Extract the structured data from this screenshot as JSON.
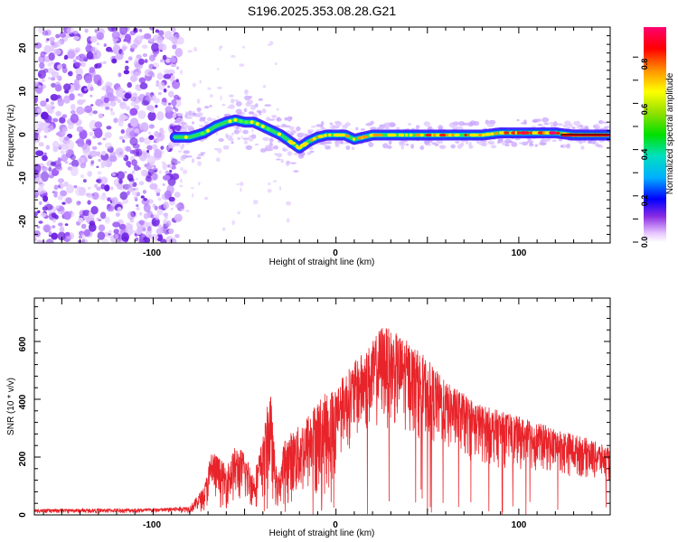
{
  "title": "S196.2025.353.08.28.G21",
  "chart_data": [
    {
      "type": "heatmap",
      "title": "S196.2025.353.08.28.G21",
      "xlabel": "Height of straight line (km)",
      "ylabel": "Frequency (Hz)",
      "xlim": [
        -165,
        150
      ],
      "ylim": [
        -25,
        25
      ],
      "xticks": [
        "-100",
        "0",
        "100"
      ],
      "yticks": [
        "-20",
        "-10",
        "0",
        "10",
        "20"
      ],
      "colorbar": {
        "label": "Normalized spectral amplitude",
        "range": [
          0,
          1
        ],
        "ticks": [
          "0.0",
          "0.2",
          "0.4",
          "0.6",
          "0.8"
        ]
      },
      "ridge": {
        "x": [
          -88,
          -80,
          -72,
          -66,
          -60,
          -55,
          -50,
          -45,
          -40,
          -35,
          -30,
          -25,
          -20,
          -15,
          -10,
          -5,
          0,
          5,
          10,
          15,
          20,
          30,
          40,
          50,
          60,
          70,
          80,
          90,
          100,
          110,
          120,
          130,
          140,
          150
        ],
        "freq": [
          -0.5,
          -0.5,
          0.5,
          2,
          3,
          3.5,
          3,
          3,
          2,
          1,
          0,
          -1.5,
          -3,
          -1.5,
          -0.5,
          0,
          0,
          0,
          -1,
          -0.5,
          0,
          0,
          0,
          0,
          0,
          0,
          0,
          0.5,
          0.5,
          0.5,
          0.5,
          0,
          0,
          0
        ]
      },
      "noise_region_x": [
        -165,
        -85
      ]
    },
    {
      "type": "line",
      "xlabel": "Height of straight line (km)",
      "ylabel": "SNR (10 * v/v)",
      "xlim": [
        -165,
        150
      ],
      "ylim": [
        0,
        750
      ],
      "xticks": [
        "-100",
        "0",
        "100"
      ],
      "yticks": [
        "0",
        "200",
        "400",
        "600"
      ],
      "color": "#e8242a",
      "envelope": {
        "x": [
          -165,
          -100,
          -80,
          -72,
          -68,
          -64,
          -60,
          -55,
          -50,
          -45,
          -40,
          -36,
          -34,
          -32,
          -28,
          -20,
          -10,
          0,
          10,
          20,
          25,
          30,
          40,
          50,
          60,
          80,
          100,
          120,
          140,
          150
        ],
        "snr": [
          20,
          22,
          30,
          100,
          230,
          200,
          170,
          240,
          220,
          140,
          270,
          450,
          260,
          120,
          270,
          310,
          400,
          450,
          530,
          600,
          660,
          640,
          600,
          540,
          460,
          380,
          340,
          300,
          260,
          230
        ]
      }
    }
  ]
}
